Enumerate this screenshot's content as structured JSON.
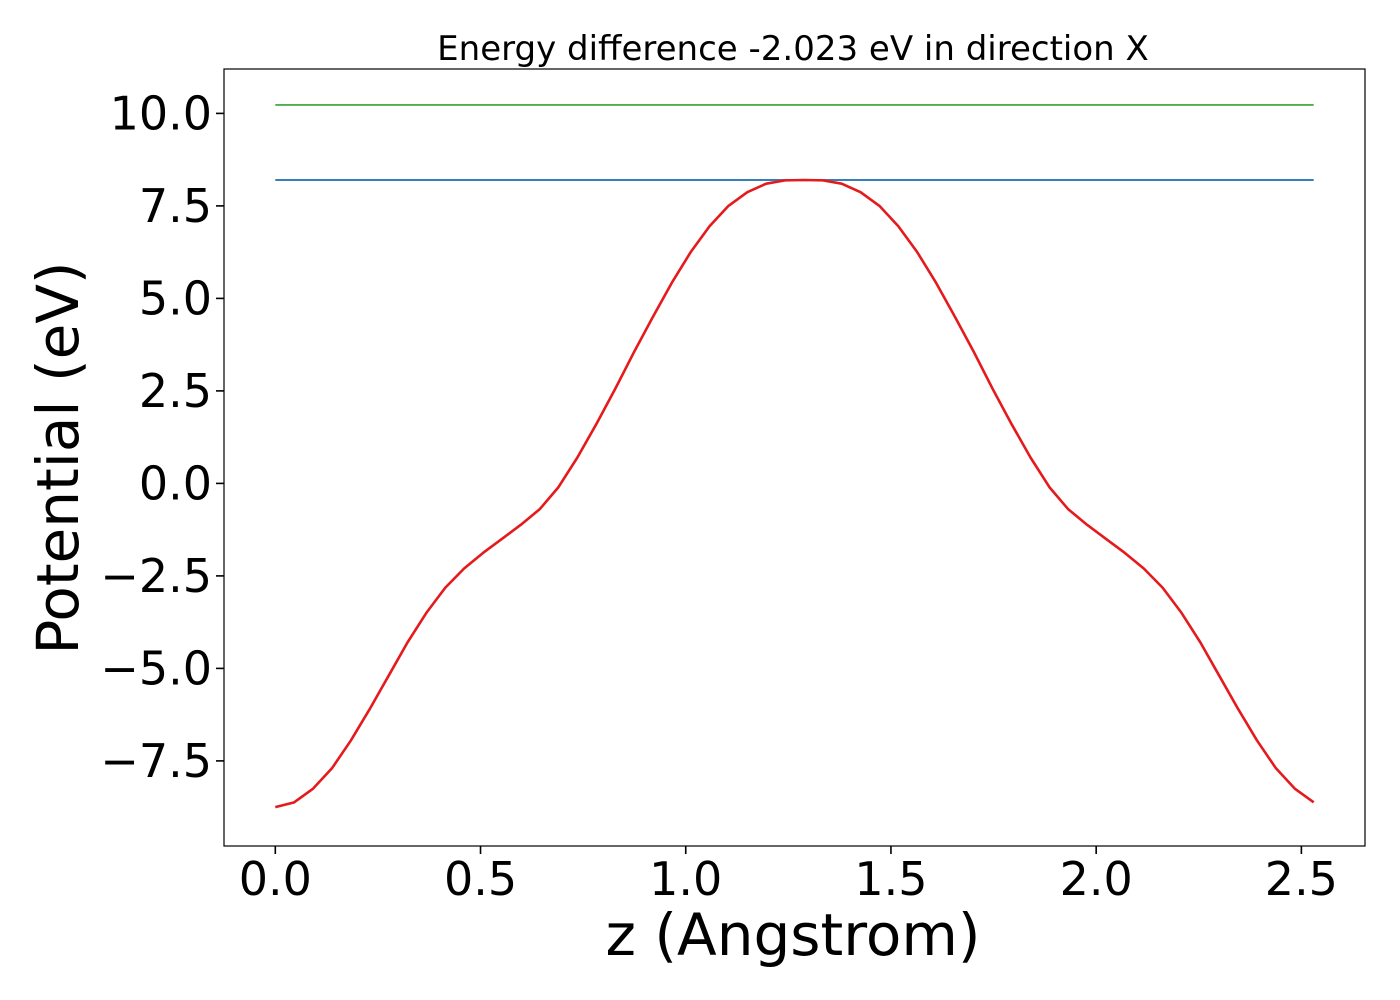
{
  "chart_data": {
    "type": "line",
    "title": "Energy difference -2.023 eV in direction X",
    "xlabel": "z (Angstrom)",
    "ylabel": "Potential (eV)",
    "xlim": [
      -0.125,
      2.655
    ],
    "ylim": [
      -9.8,
      11.2
    ],
    "xticks": [
      0.0,
      0.5,
      1.0,
      1.5,
      2.0,
      2.5
    ],
    "xtick_labels": [
      "0.0",
      "0.5",
      "1.0",
      "1.5",
      "2.0",
      "2.5"
    ],
    "yticks": [
      -7.5,
      -5.0,
      -2.5,
      0.0,
      2.5,
      5.0,
      7.5,
      10.0
    ],
    "ytick_labels": [
      "−7.5",
      "−5.0",
      "−2.5",
      "0.0",
      "2.5",
      "5.0",
      "7.5",
      "10.0"
    ],
    "grid": false,
    "series": [
      {
        "color": "#4daf4a",
        "x": [
          0.0,
          2.53
        ],
        "y": [
          10.23,
          10.23
        ]
      },
      {
        "color": "#377eb8",
        "x": [
          0.0,
          2.53
        ],
        "y": [
          8.2,
          8.2
        ]
      },
      {
        "color": "#e41a1c",
        "x": [
          0.0,
          0.046,
          0.092,
          0.138,
          0.184,
          0.23,
          0.276,
          0.322,
          0.368,
          0.414,
          0.46,
          0.506,
          0.552,
          0.598,
          0.644,
          0.69,
          0.736,
          0.782,
          0.828,
          0.874,
          0.92,
          0.966,
          1.012,
          1.058,
          1.104,
          1.15,
          1.196,
          1.242,
          1.288,
          1.334,
          1.38,
          1.426,
          1.472,
          1.518,
          1.564,
          1.61,
          1.656,
          1.702,
          1.748,
          1.794,
          1.84,
          1.886,
          1.932,
          1.978,
          2.024,
          2.07,
          2.116,
          2.162,
          2.208,
          2.254,
          2.3,
          2.346,
          2.392,
          2.438,
          2.484,
          2.53
        ],
        "y": [
          -8.75,
          -8.62,
          -8.25,
          -7.7,
          -6.95,
          -6.1,
          -5.2,
          -4.3,
          -3.5,
          -2.82,
          -2.3,
          -1.88,
          -1.5,
          -1.12,
          -0.7,
          -0.1,
          0.7,
          1.6,
          2.55,
          3.55,
          4.5,
          5.42,
          6.25,
          6.95,
          7.5,
          7.87,
          8.1,
          8.19,
          8.2,
          8.19,
          8.1,
          7.87,
          7.5,
          6.95,
          6.25,
          5.42,
          4.5,
          3.55,
          2.55,
          1.6,
          0.7,
          -0.1,
          -0.7,
          -1.12,
          -1.5,
          -1.88,
          -2.3,
          -2.82,
          -3.5,
          -4.3,
          -5.2,
          -6.1,
          -6.95,
          -7.7,
          -8.25,
          -8.62
        ]
      }
    ]
  }
}
